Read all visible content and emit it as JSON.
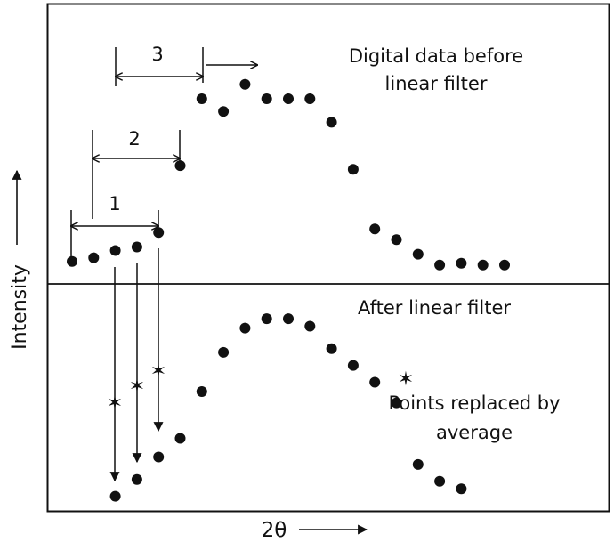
{
  "labels": {
    "top_panel": [
      "Digital data before",
      "linear filter"
    ],
    "bottom_panel": "After linear filter",
    "legend_symbol": "✶",
    "legend_text": [
      "Points replaced by",
      "average"
    ],
    "y_axis": "Intensity",
    "x_axis": "2θ",
    "window_numbers": [
      "1",
      "2",
      "3"
    ]
  },
  "colors": {
    "ink": "#111111",
    "background": "#ffffff"
  },
  "data": {
    "before_filter": [
      1.0,
      1.2,
      1.6,
      1.8,
      2.6,
      6.3,
      10.0,
      9.3,
      10.8,
      10.0,
      10.0,
      10.0,
      8.7,
      6.1,
      2.8,
      2.2,
      1.4,
      0.8,
      0.9,
      0.8,
      0.8
    ],
    "after_filter": [
      0.4,
      1.3,
      2.5,
      3.5,
      6.0,
      8.1,
      9.4,
      9.9,
      9.9,
      9.5,
      8.3,
      7.4,
      6.5,
      5.4,
      2.1,
      1.2,
      0.8
    ],
    "after_filter_start_index": 2,
    "replaced_indices": [
      2,
      3,
      4
    ],
    "window_size": 5
  }
}
